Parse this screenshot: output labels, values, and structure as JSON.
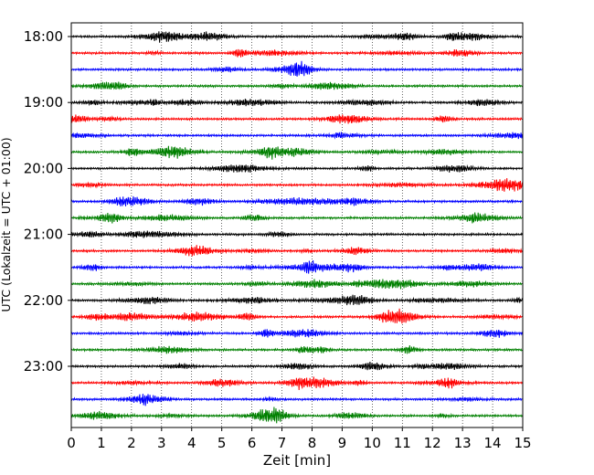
{
  "chart_data": {
    "type": "line",
    "title": "",
    "xlabel": "Zeit  [min]",
    "ylabel": "UTC (Lokalzeit = UTC + 01:00)",
    "xlim": [
      0,
      15
    ],
    "x_ticks": [
      "0",
      "1",
      "2",
      "3",
      "4",
      "5",
      "6",
      "7",
      "8",
      "9",
      "10",
      "11",
      "12",
      "13",
      "14",
      "15"
    ],
    "y_ticks": [
      "18:00",
      "19:00",
      "20:00",
      "21:00",
      "22:00",
      "23:00"
    ],
    "grid": "vertical dotted lines at every minute",
    "trace_interval_minutes": 15,
    "trace_count": 24,
    "trace_colors": [
      "#000000",
      "#ff0000",
      "#0000ff",
      "#008000"
    ],
    "trace_start_times": [
      "18:00",
      "18:15",
      "18:30",
      "18:45",
      "19:00",
      "19:15",
      "19:30",
      "19:45",
      "20:00",
      "20:15",
      "20:30",
      "20:45",
      "21:00",
      "21:15",
      "21:30",
      "21:45",
      "22:00",
      "22:15",
      "22:30",
      "22:45",
      "23:00",
      "23:15",
      "23:30",
      "23:45"
    ]
  }
}
